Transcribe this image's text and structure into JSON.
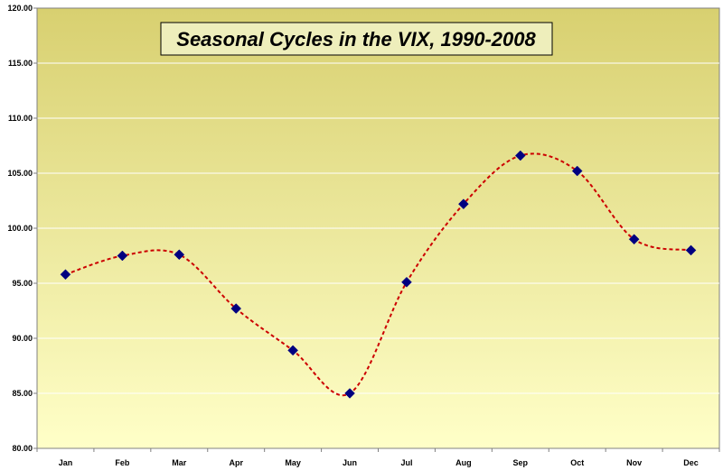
{
  "chart_data": {
    "type": "line",
    "title": "Seasonal Cycles in the VIX, 1990-2008",
    "xlabel": "",
    "ylabel": "",
    "categories": [
      "Jan",
      "Feb",
      "Mar",
      "Apr",
      "May",
      "Jun",
      "Jul",
      "Aug",
      "Sep",
      "Oct",
      "Nov",
      "Dec"
    ],
    "series": [
      {
        "values": [
          95.8,
          97.5,
          97.6,
          92.7,
          88.9,
          85.0,
          95.1,
          102.2,
          106.6,
          105.2,
          99.0,
          98.0
        ]
      }
    ],
    "ylim": [
      80,
      120
    ],
    "yticks": [
      "80.00",
      "85.00",
      "90.00",
      "95.00",
      "100.00",
      "105.00",
      "110.00",
      "115.00",
      "120.00"
    ],
    "grid": true,
    "line_style": "dashed smoothed",
    "colors": {
      "line": "#cc0000",
      "marker": "#000080",
      "plot_top": "#d8d070",
      "plot_bottom": "#ffffc8",
      "title_box": "#eeeebb",
      "gridline": "#ffffff"
    }
  }
}
